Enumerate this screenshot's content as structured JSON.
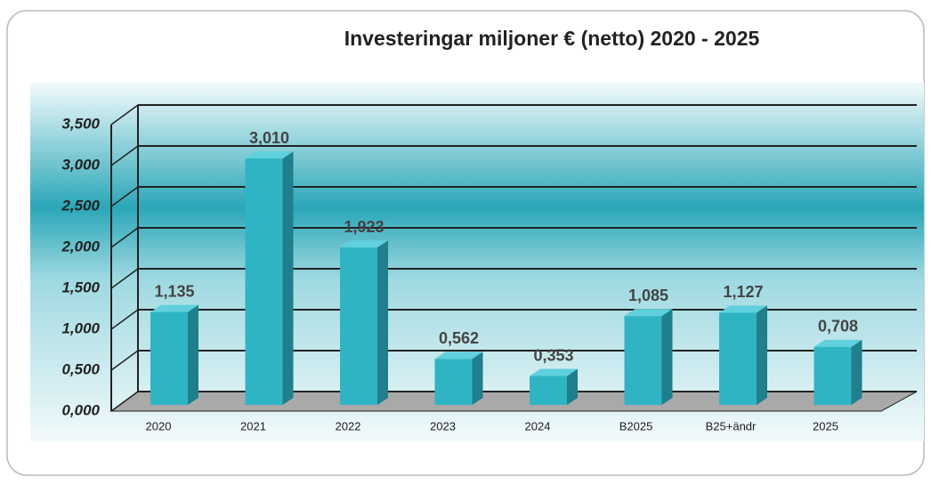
{
  "chart_data": {
    "type": "bar",
    "title": "Investeringar miljoner € (netto) 2020 - 2025",
    "categories": [
      "2020",
      "2021",
      "2022",
      "2023",
      "2024",
      "B2025",
      "B25+ändr",
      "2025"
    ],
    "values": [
      1.135,
      3.01,
      1.923,
      0.562,
      0.353,
      1.085,
      1.127,
      0.708
    ],
    "value_labels": [
      "1,135",
      "3,010",
      "1,923",
      "0,562",
      "0,353",
      "1,085",
      "1,127",
      "0,708"
    ],
    "color": "#2fb4c4",
    "ylim": [
      0,
      3.5
    ],
    "yticks": [
      {
        "value": 0,
        "label": "0,000"
      },
      {
        "value": 0.5,
        "label": "0,500"
      },
      {
        "value": 1,
        "label": "1,000"
      },
      {
        "value": 1.5,
        "label": "1,500"
      },
      {
        "value": 2,
        "label": "2,000"
      },
      {
        "value": 2.5,
        "label": "2,500"
      },
      {
        "value": 3,
        "label": "3,000"
      },
      {
        "value": 3.5,
        "label": "3,500"
      }
    ],
    "grid": true
  }
}
